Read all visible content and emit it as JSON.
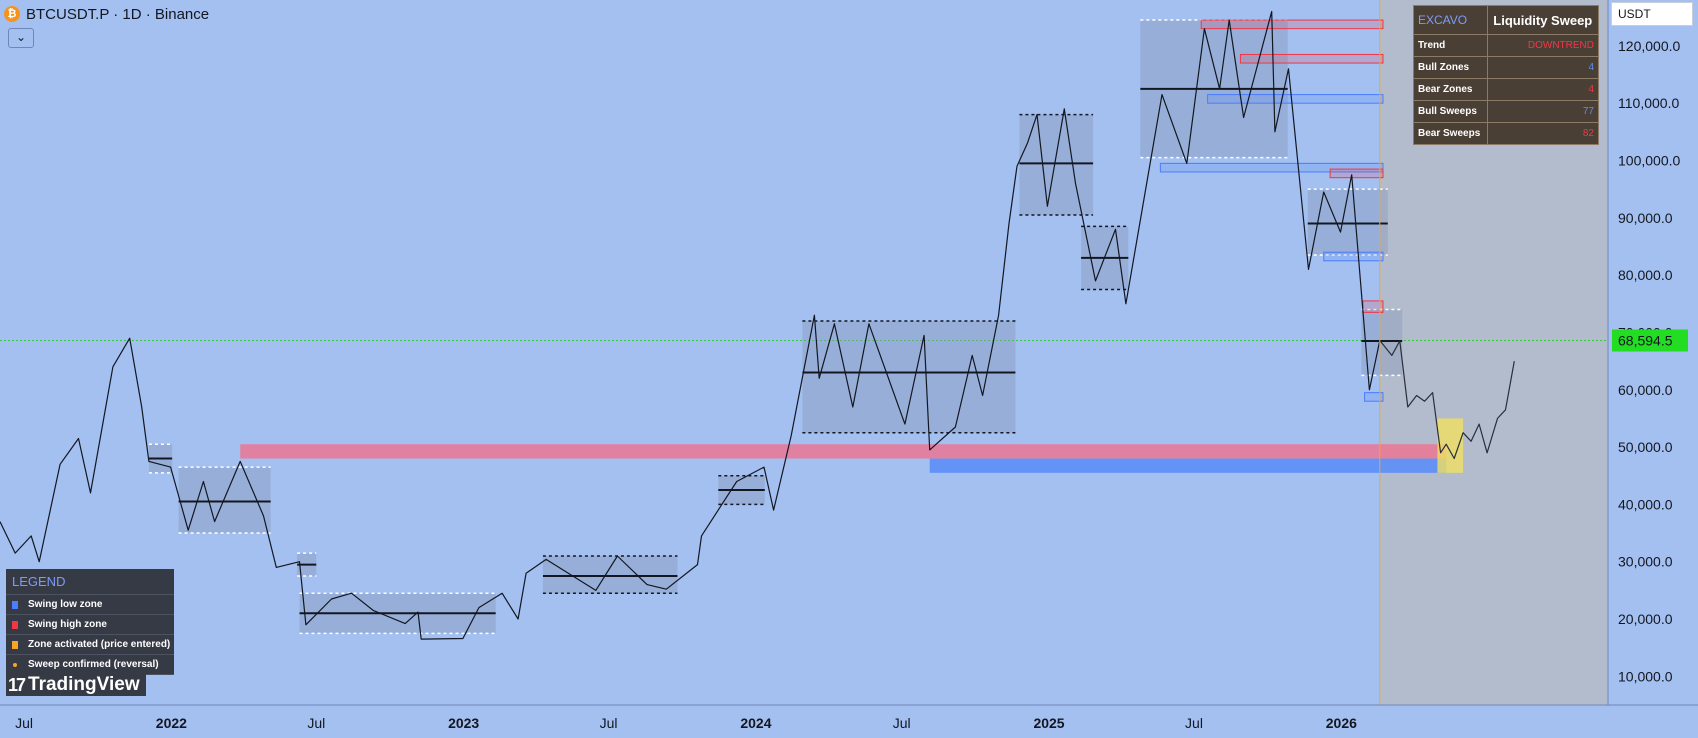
{
  "header": {
    "symbol_title": "BTCUSDT.P · 1D · Binance",
    "coin_icon_glyph": "₿",
    "collapse_glyph": "⌄",
    "currency": "USDT"
  },
  "info_table": {
    "brand": "EXCAVO",
    "title": "Liquidity Sweep",
    "rows": [
      {
        "label": "Trend",
        "value": "DOWNTREND",
        "color": "#f23645"
      },
      {
        "label": "Bull Zones",
        "value": "4",
        "color": "#5b8def"
      },
      {
        "label": "Bear Zones",
        "value": "4",
        "color": "#f23645"
      },
      {
        "label": "Bull Sweeps",
        "value": "77",
        "color": "#5b8def"
      },
      {
        "label": "Bear Sweeps",
        "value": "82",
        "color": "#f23645"
      }
    ]
  },
  "legend": {
    "title": "LEGEND",
    "items": [
      {
        "label": "Swing low zone",
        "color": "#4a7dff",
        "shape": "square"
      },
      {
        "label": "Swing high zone",
        "color": "#f23645",
        "shape": "square"
      },
      {
        "label": "Zone activated (price entered)",
        "color": "#f5a623",
        "shape": "square"
      },
      {
        "label": "Sweep confirmed (reversal)",
        "color": "#f5a623",
        "shape": "dot"
      }
    ]
  },
  "branding": {
    "logo_mark": "17",
    "logo_text": "TradingView"
  },
  "colors": {
    "background": "#a3c0f0",
    "forecast_area": "#b3bccc",
    "candle": "#131722",
    "bear_zone": "#f23645",
    "bull_zone": "#4a7dff",
    "range_box": "#8a9bba",
    "current_price_bg": "#22dd22",
    "target_zone": "#f0e060"
  },
  "chart_data": {
    "type": "candlestick",
    "symbol": "BTCUSDT.P",
    "interval": "1D",
    "exchange": "Binance",
    "y_axis": {
      "ticks": [
        10000,
        20000,
        30000,
        40000,
        50000,
        60000,
        70000,
        80000,
        90000,
        100000,
        110000,
        120000
      ],
      "tick_labels": [
        "10,000.0",
        "20,000.0",
        "30,000.0",
        "40,000.0",
        "50,000.0",
        "60,000.0",
        "70,000.0",
        "80,000.0",
        "90,000.0",
        "100,000.0",
        "110,000.0",
        "120,000.0"
      ],
      "range": [
        5000,
        128000
      ]
    },
    "x_axis": {
      "range": [
        "2021-06-01",
        "2026-11-30"
      ],
      "ticks": [
        {
          "date": "2021-07-01",
          "label": "Jul",
          "bold": false
        },
        {
          "date": "2022-01-01",
          "label": "2022",
          "bold": true
        },
        {
          "date": "2022-07-01",
          "label": "Jul",
          "bold": false
        },
        {
          "date": "2023-01-01",
          "label": "2023",
          "bold": true
        },
        {
          "date": "2023-07-01",
          "label": "Jul",
          "bold": false
        },
        {
          "date": "2024-01-01",
          "label": "2024",
          "bold": true
        },
        {
          "date": "2024-07-01",
          "label": "Jul",
          "bold": false
        },
        {
          "date": "2025-01-01",
          "label": "2025",
          "bold": true
        },
        {
          "date": "2025-07-01",
          "label": "Jul",
          "bold": false
        },
        {
          "date": "2026-01-01",
          "label": "2026",
          "bold": true
        }
      ]
    },
    "current_price": {
      "value": 68594.5,
      "label": "68,594.5"
    },
    "now_date": "2026-02-18",
    "price_path": [
      [
        "2021-06-01",
        37000
      ],
      [
        "2021-06-20",
        31500
      ],
      [
        "2021-07-10",
        34500
      ],
      [
        "2021-07-20",
        30000
      ],
      [
        "2021-08-15",
        47000
      ],
      [
        "2021-09-07",
        51500
      ],
      [
        "2021-09-22",
        42000
      ],
      [
        "2021-10-20",
        64000
      ],
      [
        "2021-11-10",
        69000
      ],
      [
        "2021-11-25",
        57000
      ],
      [
        "2021-12-04",
        47500
      ],
      [
        "2021-12-31",
        46500
      ],
      [
        "2022-01-22",
        35500
      ],
      [
        "2022-02-10",
        44000
      ],
      [
        "2022-02-24",
        37000
      ],
      [
        "2022-03-28",
        47500
      ],
      [
        "2022-04-26",
        38000
      ],
      [
        "2022-05-12",
        29000
      ],
      [
        "2022-06-10",
        30000
      ],
      [
        "2022-06-18",
        19000
      ],
      [
        "2022-07-20",
        23500
      ],
      [
        "2022-08-14",
        24500
      ],
      [
        "2022-09-10",
        21500
      ],
      [
        "2022-10-20",
        19200
      ],
      [
        "2022-11-05",
        21200
      ],
      [
        "2022-11-09",
        16500
      ],
      [
        "2022-12-31",
        16600
      ],
      [
        "2023-01-20",
        22000
      ],
      [
        "2023-02-18",
        24500
      ],
      [
        "2023-03-10",
        20000
      ],
      [
        "2023-03-20",
        28000
      ],
      [
        "2023-04-14",
        30400
      ],
      [
        "2023-06-15",
        25000
      ],
      [
        "2023-07-12",
        31000
      ],
      [
        "2023-08-18",
        26000
      ],
      [
        "2023-09-11",
        25200
      ],
      [
        "2023-10-20",
        29500
      ],
      [
        "2023-10-25",
        34500
      ],
      [
        "2023-12-08",
        44000
      ],
      [
        "2024-01-11",
        46500
      ],
      [
        "2024-01-23",
        39000
      ],
      [
        "2024-02-14",
        52000
      ],
      [
        "2024-03-14",
        73000
      ],
      [
        "2024-03-20",
        62000
      ],
      [
        "2024-04-08",
        71500
      ],
      [
        "2024-05-01",
        57000
      ],
      [
        "2024-05-21",
        71500
      ],
      [
        "2024-07-05",
        54000
      ],
      [
        "2024-07-29",
        69500
      ],
      [
        "2024-08-05",
        49500
      ],
      [
        "2024-09-06",
        53500
      ],
      [
        "2024-09-27",
        66000
      ],
      [
        "2024-10-10",
        59000
      ],
      [
        "2024-10-30",
        73000
      ],
      [
        "2024-11-12",
        89000
      ],
      [
        "2024-11-22",
        99000
      ],
      [
        "2024-12-05",
        103000
      ],
      [
        "2024-12-17",
        108000
      ],
      [
        "2024-12-30",
        92000
      ],
      [
        "2025-01-20",
        109000
      ],
      [
        "2025-02-03",
        96000
      ],
      [
        "2025-02-28",
        79000
      ],
      [
        "2025-03-25",
        88000
      ],
      [
        "2025-04-07",
        75000
      ],
      [
        "2025-05-22",
        111500
      ],
      [
        "2025-06-22",
        99500
      ],
      [
        "2025-07-14",
        123000
      ],
      [
        "2025-08-02",
        112500
      ],
      [
        "2025-08-14",
        124500
      ],
      [
        "2025-09-01",
        107500
      ],
      [
        "2025-10-06",
        126000
      ],
      [
        "2025-10-10",
        105000
      ],
      [
        "2025-10-27",
        116000
      ],
      [
        "2025-11-21",
        81000
      ],
      [
        "2025-12-10",
        94500
      ],
      [
        "2025-12-31",
        87500
      ],
      [
        "2026-01-14",
        97500
      ],
      [
        "2026-02-05",
        60000
      ],
      [
        "2026-02-18",
        68594.5
      ]
    ],
    "projection_path": [
      [
        "2026-02-18",
        68594.5
      ],
      [
        "2026-03-05",
        66000
      ],
      [
        "2026-03-15",
        68500
      ],
      [
        "2026-03-25",
        57000
      ],
      [
        "2026-04-05",
        59000
      ],
      [
        "2026-04-15",
        58000
      ],
      [
        "2026-04-25",
        59500
      ],
      [
        "2026-05-05",
        49000
      ],
      [
        "2026-05-12",
        50500
      ],
      [
        "2026-05-22",
        48000
      ],
      [
        "2026-06-02",
        52500
      ],
      [
        "2026-06-12",
        51000
      ],
      [
        "2026-06-22",
        54000
      ],
      [
        "2026-07-02",
        49000
      ],
      [
        "2026-07-15",
        55000
      ],
      [
        "2026-07-25",
        56500
      ],
      [
        "2026-08-05",
        65000
      ]
    ],
    "range_boxes": [
      {
        "start": "2021-12-04",
        "end": "2022-01-02",
        "top": 50500,
        "bottom": 45500,
        "mid": 48000,
        "border": "white"
      },
      {
        "start": "2022-01-10",
        "end": "2022-05-05",
        "top": 46500,
        "bottom": 35000,
        "mid": 40500,
        "border": "white"
      },
      {
        "start": "2022-06-07",
        "end": "2022-07-01",
        "top": 31500,
        "bottom": 27500,
        "mid": 29500,
        "border": "white"
      },
      {
        "start": "2022-06-10",
        "end": "2023-02-10",
        "top": 24500,
        "bottom": 17500,
        "mid": 21000,
        "border": "white"
      },
      {
        "start": "2023-04-10",
        "end": "2023-09-25",
        "top": 31000,
        "bottom": 24500,
        "mid": 27500,
        "border": "black"
      },
      {
        "start": "2023-11-15",
        "end": "2024-01-12",
        "top": 45000,
        "bottom": 40000,
        "mid": 42500,
        "border": "black"
      },
      {
        "start": "2024-02-28",
        "end": "2024-11-20",
        "top": 72000,
        "bottom": 52500,
        "mid": 63000,
        "border": "black"
      },
      {
        "start": "2024-11-25",
        "end": "2025-02-25",
        "top": 108000,
        "bottom": 90500,
        "mid": 99500,
        "border": "black"
      },
      {
        "start": "2025-02-10",
        "end": "2025-04-10",
        "top": 88500,
        "bottom": 77500,
        "mid": 83000,
        "border": "black"
      },
      {
        "start": "2025-04-25",
        "end": "2025-10-26",
        "top": 124500,
        "bottom": 100500,
        "mid": 112500,
        "border": "white"
      },
      {
        "start": "2025-11-20",
        "end": "2026-02-28",
        "top": 95000,
        "bottom": 83500,
        "mid": 89000,
        "border": "white"
      },
      {
        "start": "2026-01-26",
        "end": "2026-03-18",
        "top": 74000,
        "bottom": 62500,
        "mid": 68500,
        "border": "white"
      }
    ],
    "zone_boxes": [
      {
        "kind": "bear",
        "start": "2025-07-10",
        "end": "2026-02-22",
        "top": 124500,
        "bottom": 123000
      },
      {
        "kind": "bear",
        "start": "2025-08-28",
        "end": "2026-02-22",
        "top": 118500,
        "bottom": 117000
      },
      {
        "kind": "bull",
        "start": "2025-07-18",
        "end": "2026-02-22",
        "top": 111500,
        "bottom": 110000
      },
      {
        "kind": "bull",
        "start": "2025-05-20",
        "end": "2026-02-22",
        "top": 99500,
        "bottom": 98000
      },
      {
        "kind": "bear",
        "start": "2025-12-18",
        "end": "2026-02-22",
        "top": 98500,
        "bottom": 97000
      },
      {
        "kind": "bull",
        "start": "2025-12-10",
        "end": "2026-02-22",
        "top": 84000,
        "bottom": 82500
      },
      {
        "kind": "bear",
        "start": "2026-01-28",
        "end": "2026-02-22",
        "top": 75500,
        "bottom": 73500
      },
      {
        "kind": "bull",
        "start": "2026-01-30",
        "end": "2026-02-22",
        "top": 59500,
        "bottom": 58000
      }
    ],
    "liquidity_bands": [
      {
        "kind": "bear",
        "start": "2022-03-28",
        "end": "2026-05-12",
        "top": 50500,
        "bottom": 48000
      },
      {
        "kind": "bull",
        "start": "2024-08-05",
        "end": "2026-05-12",
        "top": 48000,
        "bottom": 45500
      }
    ],
    "target_zone": {
      "start": "2026-05-01",
      "end": "2026-06-02",
      "top": 55000,
      "bottom": 45500
    }
  }
}
